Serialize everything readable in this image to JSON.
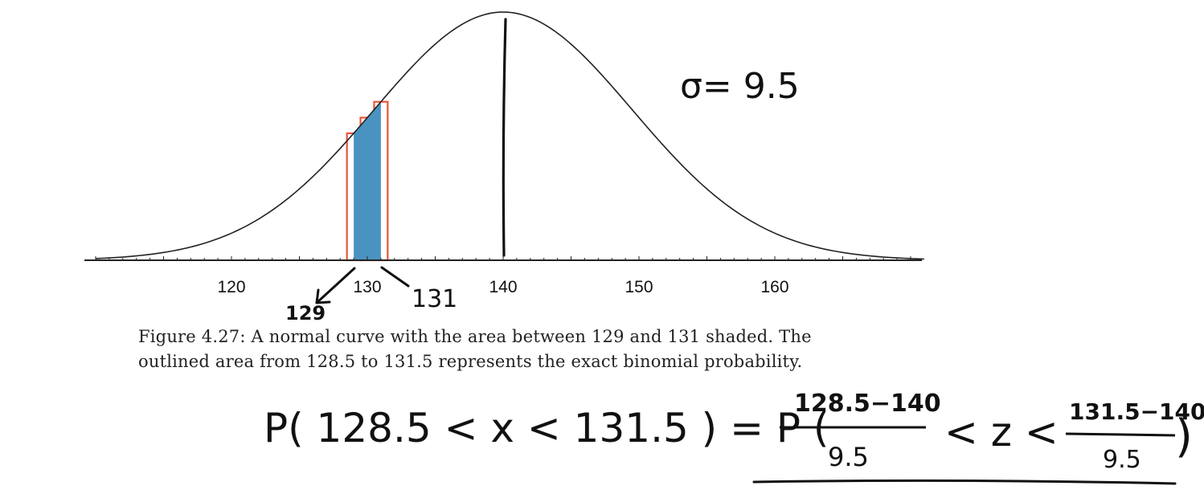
{
  "chart_data": {
    "type": "area",
    "distribution": "normal",
    "mean": 140,
    "sd": 9.5,
    "xlim": [
      110,
      171
    ],
    "x_ticks": [
      "120",
      "130",
      "140",
      "150",
      "160"
    ],
    "x_tick_values": [
      120,
      130,
      140,
      150,
      160
    ],
    "shaded_interval": [
      129,
      131
    ],
    "outlined_bars": [
      {
        "from": 128.5,
        "to": 129.5
      },
      {
        "from": 129.5,
        "to": 130.5
      },
      {
        "from": 130.5,
        "to": 131.5
      }
    ],
    "shaded_color": "#4a93c0",
    "outline_color": "#e8563a",
    "curve_color": "#222222",
    "mean_line": 140
  },
  "annotations": {
    "sigma": "σ= 9.5",
    "left_marker": "129",
    "right_marker": "131"
  },
  "caption": {
    "line1": "Figure 4.27:  A normal curve with the area between 129 and 131 shaded.  The",
    "line2": "outlined area from 128.5 to 131.5 represents the exact binomial probability."
  },
  "equation": {
    "lhs_open": "P( 128.5 < x < 131.5 ) = P (",
    "num1": "128.5−140",
    "den1": "9.5",
    "mid": "< z <",
    "num2": "131.5−140",
    "den2": "9.5",
    "close": ")"
  }
}
